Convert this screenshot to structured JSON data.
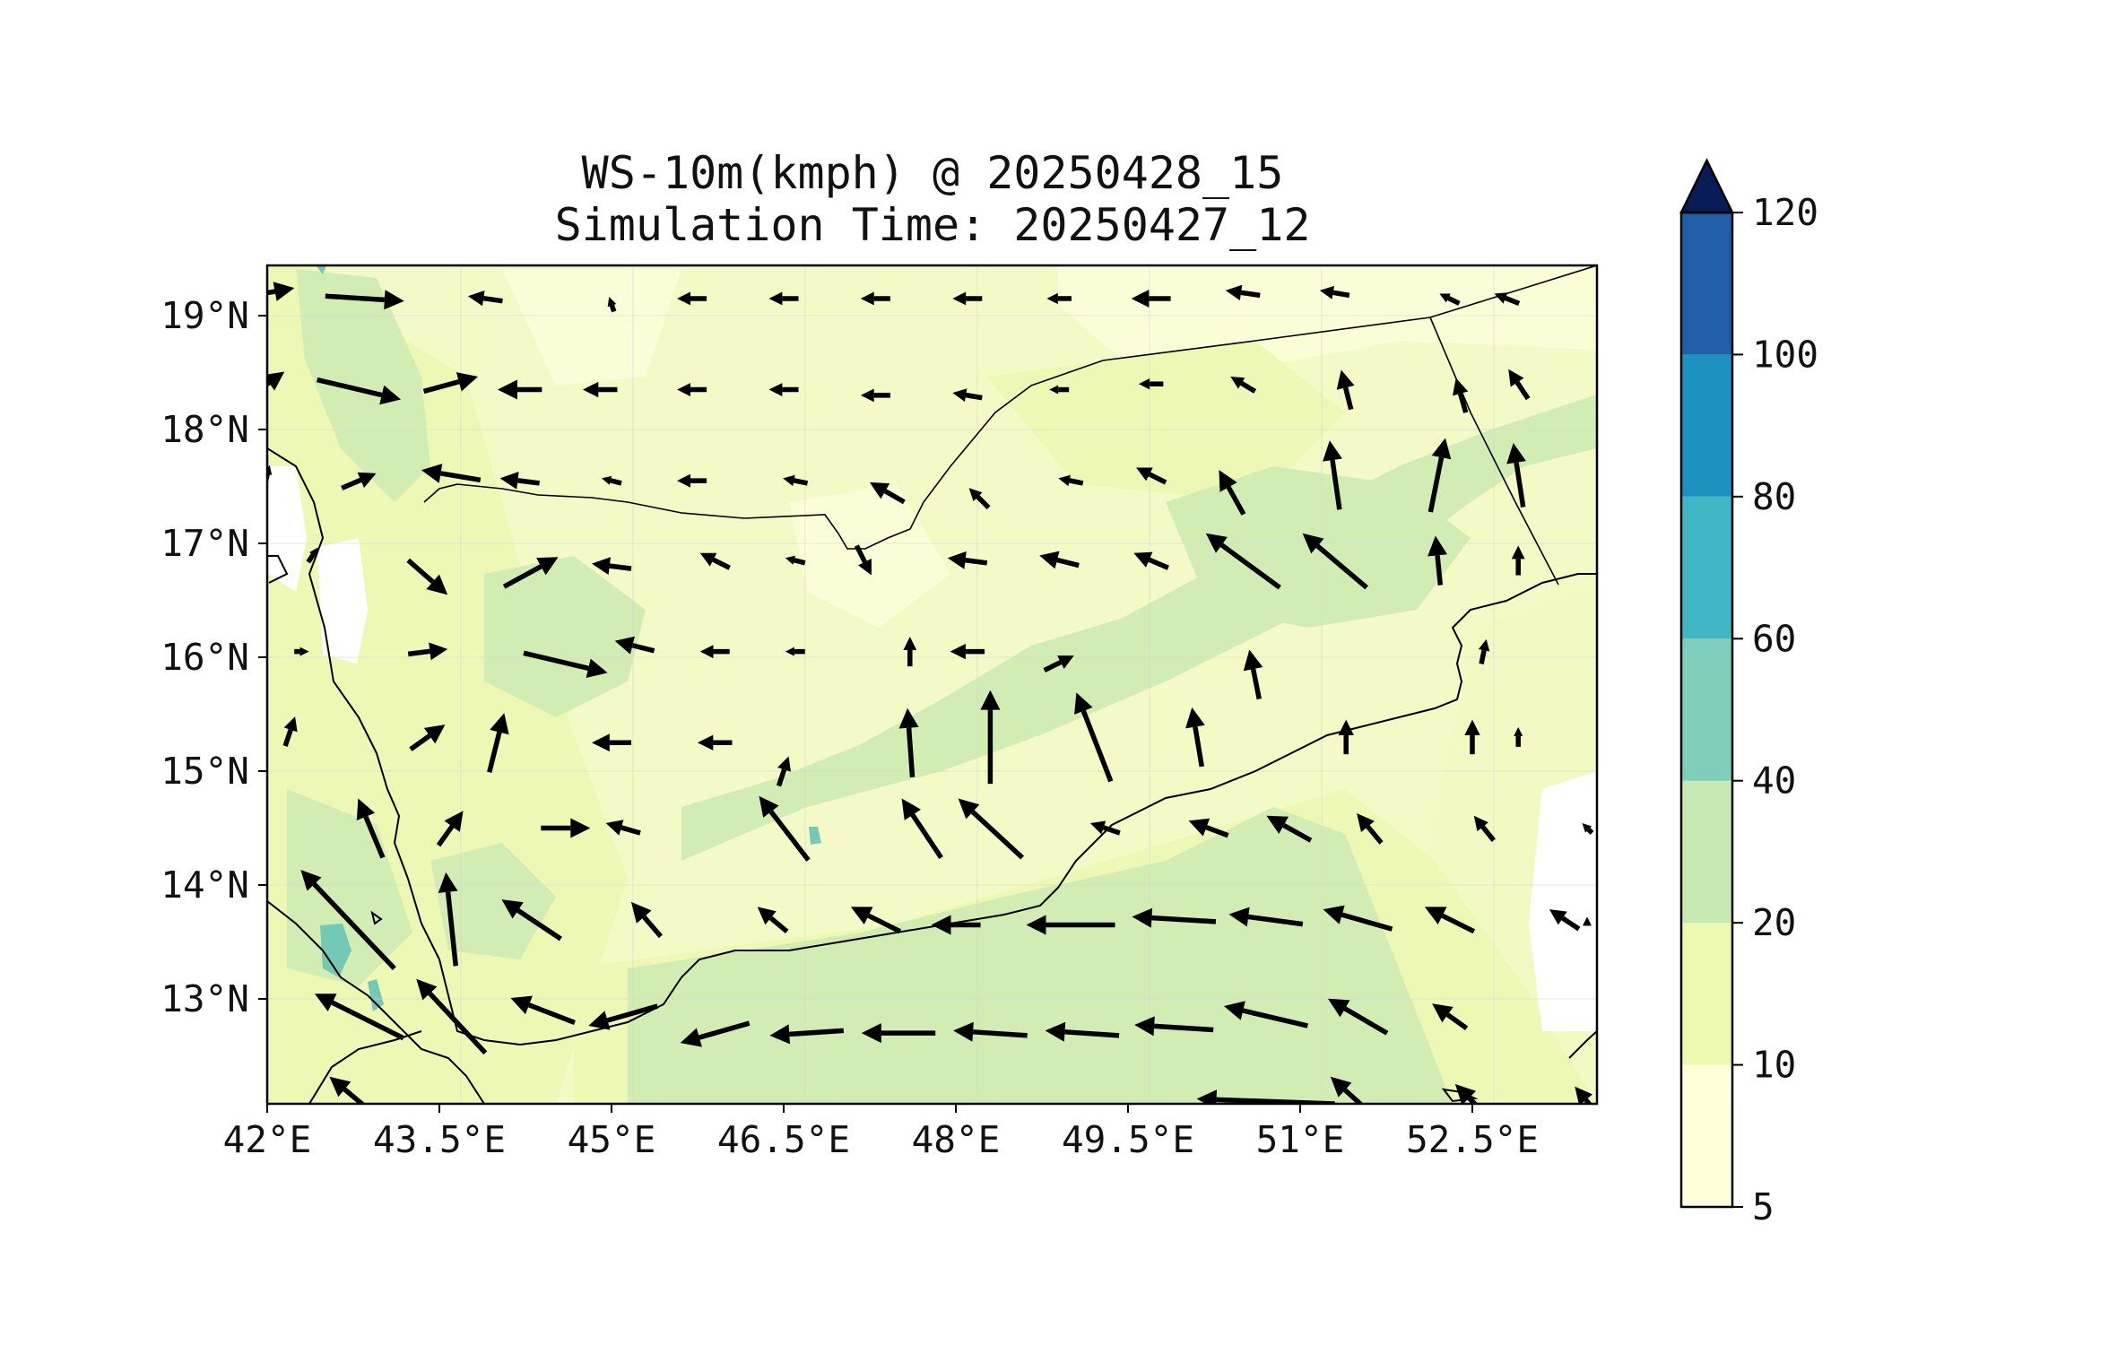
{
  "title": {
    "line1": "WS-10m(kmph) @ 20250428_15",
    "line2": "Simulation Time: 20250427_12"
  },
  "map": {
    "lon_range": [
      42,
      53.6
    ],
    "lat_range": [
      12.1,
      19.45
    ],
    "x_ticks": [
      "42°E",
      "43.5°E",
      "45°E",
      "46.5°E",
      "48°E",
      "49.5°E",
      "51°E",
      "52.5°E"
    ],
    "x_tick_values": [
      42,
      43.5,
      45,
      46.5,
      48,
      49.5,
      51,
      52.5
    ],
    "y_ticks": [
      "13°N",
      "14°N",
      "15°N",
      "16°N",
      "17°N",
      "18°N",
      "19°N"
    ],
    "y_tick_values": [
      13,
      14,
      15,
      16,
      17,
      18,
      19
    ],
    "gridlines": true
  },
  "colorbar": {
    "extend": "max",
    "levels": [
      "5",
      "10",
      "20",
      "40",
      "60",
      "80",
      "100",
      "120"
    ],
    "colors": [
      "#ffffd9",
      "#edf8b1",
      "#c7e9b4",
      "#7fcdbb",
      "#41b6c4",
      "#1d91c0",
      "#225ea8",
      "#253494"
    ],
    "extend_color": "#081d58"
  },
  "field_colors": {
    "low": "#f8fccc",
    "mid": "#edf8b1",
    "high": "#d2edb4",
    "very_high": "#74c8b6",
    "coast": "#000000"
  },
  "chart_data": {
    "type": "vector-field",
    "title": "WS-10m(kmph) @ 20250428_15\nSimulation Time: 20250427_12",
    "variable": "WS-10m(kmph)",
    "xlim": [
      42,
      53.6
    ],
    "ylim": [
      12.1,
      19.45
    ],
    "colorbar_levels": [
      5,
      10,
      20,
      40,
      60,
      80,
      100,
      120
    ],
    "wind_vectors": [
      {
        "lon": 42.0,
        "lat": 19.2,
        "u": 0.55,
        "v": 0.1
      },
      {
        "lon": 42.85,
        "lat": 19.15,
        "u": 0.8,
        "v": -0.05
      },
      {
        "lon": 43.9,
        "lat": 19.15,
        "u": -0.35,
        "v": 0.05
      },
      {
        "lon": 45.0,
        "lat": 19.1,
        "u": -0.05,
        "v": 0.15
      },
      {
        "lon": 45.7,
        "lat": 19.15,
        "u": -0.3,
        "v": 0.0
      },
      {
        "lon": 46.5,
        "lat": 19.15,
        "u": -0.3,
        "v": 0.0
      },
      {
        "lon": 47.3,
        "lat": 19.15,
        "u": -0.3,
        "v": 0.0
      },
      {
        "lon": 48.1,
        "lat": 19.15,
        "u": -0.3,
        "v": 0.0
      },
      {
        "lon": 48.9,
        "lat": 19.15,
        "u": -0.25,
        "v": 0.0
      },
      {
        "lon": 49.7,
        "lat": 19.15,
        "u": -0.4,
        "v": 0.0
      },
      {
        "lon": 50.5,
        "lat": 19.2,
        "u": -0.35,
        "v": 0.05
      },
      {
        "lon": 51.3,
        "lat": 19.2,
        "u": -0.3,
        "v": 0.05
      },
      {
        "lon": 52.3,
        "lat": 19.15,
        "u": -0.2,
        "v": 0.1
      },
      {
        "lon": 52.8,
        "lat": 19.15,
        "u": -0.25,
        "v": 0.1
      },
      {
        "lon": 42.0,
        "lat": 18.4,
        "u": 0.35,
        "v": 0.25
      },
      {
        "lon": 42.8,
        "lat": 18.35,
        "u": 0.85,
        "v": -0.2
      },
      {
        "lon": 43.6,
        "lat": 18.4,
        "u": 0.55,
        "v": 0.15
      },
      {
        "lon": 44.2,
        "lat": 18.35,
        "u": -0.45,
        "v": 0.0
      },
      {
        "lon": 44.9,
        "lat": 18.35,
        "u": -0.35,
        "v": 0.0
      },
      {
        "lon": 45.7,
        "lat": 18.35,
        "u": -0.3,
        "v": 0.0
      },
      {
        "lon": 46.5,
        "lat": 18.35,
        "u": -0.3,
        "v": 0.0
      },
      {
        "lon": 47.3,
        "lat": 18.3,
        "u": -0.3,
        "v": 0.0
      },
      {
        "lon": 48.1,
        "lat": 18.3,
        "u": -0.3,
        "v": 0.05
      },
      {
        "lon": 48.9,
        "lat": 18.35,
        "u": -0.2,
        "v": 0.0
      },
      {
        "lon": 49.7,
        "lat": 18.4,
        "u": -0.25,
        "v": 0.0
      },
      {
        "lon": 50.5,
        "lat": 18.4,
        "u": -0.25,
        "v": 0.15
      },
      {
        "lon": 51.4,
        "lat": 18.35,
        "u": -0.1,
        "v": 0.4
      },
      {
        "lon": 52.4,
        "lat": 18.3,
        "u": -0.1,
        "v": 0.35
      },
      {
        "lon": 52.9,
        "lat": 18.4,
        "u": -0.2,
        "v": 0.3
      },
      {
        "lon": 42.0,
        "lat": 17.6,
        "u": 0.05,
        "v": 0.2
      },
      {
        "lon": 42.8,
        "lat": 17.55,
        "u": 0.35,
        "v": 0.15
      },
      {
        "lon": 43.6,
        "lat": 17.6,
        "u": -0.6,
        "v": 0.1
      },
      {
        "lon": 44.2,
        "lat": 17.55,
        "u": -0.4,
        "v": 0.05
      },
      {
        "lon": 45.0,
        "lat": 17.55,
        "u": -0.2,
        "v": 0.05
      },
      {
        "lon": 45.7,
        "lat": 17.55,
        "u": -0.3,
        "v": 0.0
      },
      {
        "lon": 46.6,
        "lat": 17.55,
        "u": -0.25,
        "v": 0.05
      },
      {
        "lon": 47.4,
        "lat": 17.45,
        "u": -0.35,
        "v": 0.2
      },
      {
        "lon": 48.2,
        "lat": 17.4,
        "u": -0.2,
        "v": 0.2
      },
      {
        "lon": 49.0,
        "lat": 17.55,
        "u": -0.25,
        "v": 0.05
      },
      {
        "lon": 49.7,
        "lat": 17.6,
        "u": -0.3,
        "v": 0.15
      },
      {
        "lon": 50.4,
        "lat": 17.45,
        "u": -0.25,
        "v": 0.45
      },
      {
        "lon": 51.3,
        "lat": 17.6,
        "u": -0.1,
        "v": 0.7
      },
      {
        "lon": 52.2,
        "lat": 17.6,
        "u": 0.15,
        "v": 0.75
      },
      {
        "lon": 52.9,
        "lat": 17.6,
        "u": -0.1,
        "v": 0.65
      },
      {
        "lon": 42.4,
        "lat": 16.9,
        "u": 0.1,
        "v": 0.15
      },
      {
        "lon": 43.4,
        "lat": 16.7,
        "u": 0.4,
        "v": -0.35
      },
      {
        "lon": 44.3,
        "lat": 16.75,
        "u": 0.55,
        "v": 0.3
      },
      {
        "lon": 45.0,
        "lat": 16.8,
        "u": -0.4,
        "v": 0.05
      },
      {
        "lon": 45.9,
        "lat": 16.85,
        "u": -0.3,
        "v": 0.15
      },
      {
        "lon": 46.6,
        "lat": 16.85,
        "u": -0.2,
        "v": 0.05
      },
      {
        "lon": 47.2,
        "lat": 16.85,
        "u": 0.15,
        "v": -0.3
      },
      {
        "lon": 48.1,
        "lat": 16.85,
        "u": -0.4,
        "v": 0.05
      },
      {
        "lon": 48.9,
        "lat": 16.85,
        "u": -0.4,
        "v": 0.1
      },
      {
        "lon": 49.7,
        "lat": 16.85,
        "u": -0.35,
        "v": 0.15
      },
      {
        "lon": 50.5,
        "lat": 16.85,
        "u": -0.75,
        "v": 0.55
      },
      {
        "lon": 51.3,
        "lat": 16.85,
        "u": -0.65,
        "v": 0.55
      },
      {
        "lon": 52.2,
        "lat": 16.85,
        "u": -0.05,
        "v": 0.5
      },
      {
        "lon": 52.9,
        "lat": 16.85,
        "u": 0.0,
        "v": 0.3
      },
      {
        "lon": 42.3,
        "lat": 16.05,
        "u": 0.15,
        "v": 0.0
      },
      {
        "lon": 43.4,
        "lat": 16.05,
        "u": 0.4,
        "v": 0.05
      },
      {
        "lon": 44.6,
        "lat": 15.95,
        "u": 0.85,
        "v": -0.2
      },
      {
        "lon": 45.2,
        "lat": 16.1,
        "u": -0.4,
        "v": 0.1
      },
      {
        "lon": 45.9,
        "lat": 16.05,
        "u": -0.3,
        "v": 0.0
      },
      {
        "lon": 46.6,
        "lat": 16.05,
        "u": -0.2,
        "v": 0.0
      },
      {
        "lon": 47.6,
        "lat": 16.05,
        "u": 0.0,
        "v": 0.3
      },
      {
        "lon": 48.1,
        "lat": 16.05,
        "u": -0.35,
        "v": 0.0
      },
      {
        "lon": 48.9,
        "lat": 15.95,
        "u": 0.3,
        "v": 0.15
      },
      {
        "lon": 50.6,
        "lat": 15.85,
        "u": -0.1,
        "v": 0.5
      },
      {
        "lon": 52.6,
        "lat": 16.05,
        "u": 0.05,
        "v": 0.25
      },
      {
        "lon": 42.2,
        "lat": 15.35,
        "u": 0.1,
        "v": 0.3
      },
      {
        "lon": 43.4,
        "lat": 15.3,
        "u": 0.35,
        "v": 0.25
      },
      {
        "lon": 44.0,
        "lat": 15.25,
        "u": 0.15,
        "v": 0.6
      },
      {
        "lon": 45.0,
        "lat": 15.25,
        "u": -0.4,
        "v": 0.0
      },
      {
        "lon": 45.9,
        "lat": 15.25,
        "u": -0.35,
        "v": 0.0
      },
      {
        "lon": 46.5,
        "lat": 15.0,
        "u": 0.1,
        "v": 0.3
      },
      {
        "lon": 47.6,
        "lat": 15.25,
        "u": -0.05,
        "v": 0.7
      },
      {
        "lon": 48.3,
        "lat": 15.3,
        "u": 0.0,
        "v": 0.95
      },
      {
        "lon": 49.2,
        "lat": 15.3,
        "u": -0.35,
        "v": 0.9
      },
      {
        "lon": 50.1,
        "lat": 15.3,
        "u": -0.1,
        "v": 0.6
      },
      {
        "lon": 51.4,
        "lat": 15.3,
        "u": 0.0,
        "v": 0.35
      },
      {
        "lon": 52.5,
        "lat": 15.3,
        "u": 0.0,
        "v": 0.35
      },
      {
        "lon": 52.9,
        "lat": 15.3,
        "u": 0.0,
        "v": 0.2
      },
      {
        "lon": 42.9,
        "lat": 14.5,
        "u": -0.25,
        "v": 0.6
      },
      {
        "lon": 43.6,
        "lat": 14.5,
        "u": 0.25,
        "v": 0.35
      },
      {
        "lon": 44.6,
        "lat": 14.5,
        "u": 0.5,
        "v": 0.0
      },
      {
        "lon": 45.1,
        "lat": 14.5,
        "u": -0.35,
        "v": 0.1
      },
      {
        "lon": 46.5,
        "lat": 14.5,
        "u": -0.5,
        "v": 0.65
      },
      {
        "lon": 47.7,
        "lat": 14.5,
        "u": -0.4,
        "v": 0.6
      },
      {
        "lon": 48.3,
        "lat": 14.5,
        "u": -0.65,
        "v": 0.6
      },
      {
        "lon": 49.3,
        "lat": 14.5,
        "u": -0.3,
        "v": 0.1
      },
      {
        "lon": 50.2,
        "lat": 14.5,
        "u": -0.4,
        "v": 0.15
      },
      {
        "lon": 50.9,
        "lat": 14.5,
        "u": -0.45,
        "v": 0.25
      },
      {
        "lon": 51.6,
        "lat": 14.5,
        "u": -0.25,
        "v": 0.3
      },
      {
        "lon": 52.6,
        "lat": 14.5,
        "u": -0.2,
        "v": 0.25
      },
      {
        "lon": 53.5,
        "lat": 14.5,
        "u": -0.1,
        "v": 0.1
      },
      {
        "lon": 42.7,
        "lat": 13.7,
        "u": -0.95,
        "v": 1.0
      },
      {
        "lon": 43.6,
        "lat": 13.7,
        "u": -0.1,
        "v": 0.95
      },
      {
        "lon": 44.3,
        "lat": 13.7,
        "u": -0.6,
        "v": 0.4
      },
      {
        "lon": 45.3,
        "lat": 13.7,
        "u": -0.3,
        "v": 0.35
      },
      {
        "lon": 46.4,
        "lat": 13.7,
        "u": -0.3,
        "v": 0.25
      },
      {
        "lon": 47.3,
        "lat": 13.7,
        "u": -0.5,
        "v": 0.25
      },
      {
        "lon": 48.0,
        "lat": 13.65,
        "u": -0.5,
        "v": 0.0
      },
      {
        "lon": 49.0,
        "lat": 13.65,
        "u": -0.9,
        "v": 0.0
      },
      {
        "lon": 49.9,
        "lat": 13.7,
        "u": -0.85,
        "v": 0.05
      },
      {
        "lon": 50.7,
        "lat": 13.7,
        "u": -0.75,
        "v": 0.1
      },
      {
        "lon": 51.5,
        "lat": 13.7,
        "u": -0.7,
        "v": 0.2
      },
      {
        "lon": 52.3,
        "lat": 13.7,
        "u": -0.5,
        "v": 0.25
      },
      {
        "lon": 53.3,
        "lat": 13.7,
        "u": -0.3,
        "v": 0.2
      },
      {
        "lon": 53.5,
        "lat": 13.7,
        "u": 0.0,
        "v": 0.05
      },
      {
        "lon": 42.8,
        "lat": 12.85,
        "u": -0.9,
        "v": 0.45
      },
      {
        "lon": 43.6,
        "lat": 12.85,
        "u": -0.7,
        "v": 0.75
      },
      {
        "lon": 44.4,
        "lat": 12.9,
        "u": -0.65,
        "v": 0.25
      },
      {
        "lon": 45.1,
        "lat": 12.85,
        "u": -0.7,
        "v": -0.2
      },
      {
        "lon": 45.9,
        "lat": 12.7,
        "u": -0.7,
        "v": -0.2
      },
      {
        "lon": 46.7,
        "lat": 12.7,
        "u": -0.75,
        "v": -0.05
      },
      {
        "lon": 47.5,
        "lat": 12.7,
        "u": -0.75,
        "v": 0.0
      },
      {
        "lon": 48.3,
        "lat": 12.7,
        "u": -0.75,
        "v": 0.05
      },
      {
        "lon": 49.1,
        "lat": 12.7,
        "u": -0.75,
        "v": 0.05
      },
      {
        "lon": 49.9,
        "lat": 12.75,
        "u": -0.8,
        "v": 0.05
      },
      {
        "lon": 50.7,
        "lat": 12.85,
        "u": -0.85,
        "v": 0.2
      },
      {
        "lon": 51.5,
        "lat": 12.85,
        "u": -0.6,
        "v": 0.35
      },
      {
        "lon": 52.3,
        "lat": 12.85,
        "u": -0.35,
        "v": 0.25
      },
      {
        "lon": 42.8,
        "lat": 12.1,
        "u": -0.6,
        "v": 0.5
      },
      {
        "lon": 50.7,
        "lat": 12.1,
        "u": -1.4,
        "v": 0.05
      },
      {
        "lon": 51.5,
        "lat": 12.1,
        "u": -0.55,
        "v": 0.5
      },
      {
        "lon": 52.5,
        "lat": 12.1,
        "u": -0.35,
        "v": 0.35
      },
      {
        "lon": 53.5,
        "lat": 12.1,
        "u": -0.25,
        "v": 0.3
      }
    ]
  }
}
